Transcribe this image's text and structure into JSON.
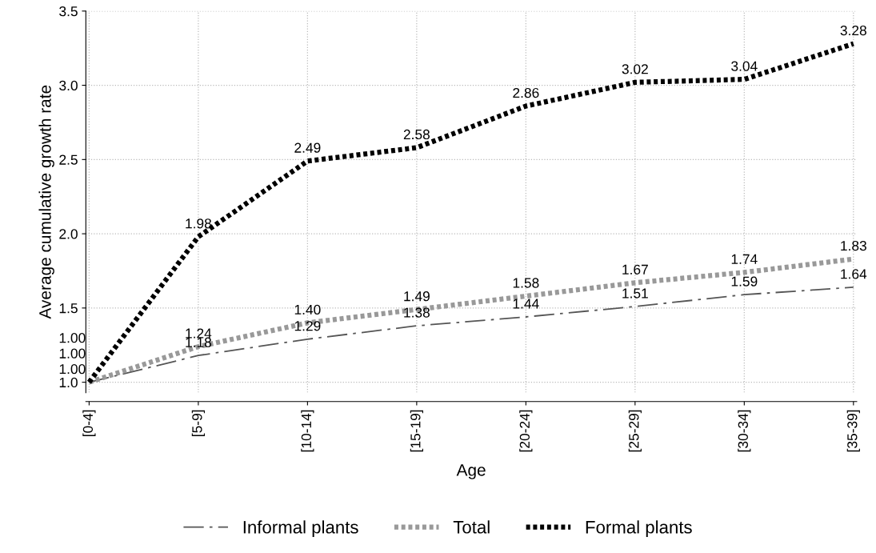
{
  "chart_data": {
    "type": "line",
    "xlabel": "Age",
    "ylabel": "Average cumulative growth rate",
    "categories": [
      "[0-4]",
      "[5-9]",
      "[10-14]",
      "[15-19]",
      "[20-24]",
      "[25-29]",
      "[30-34]",
      "[35-39]"
    ],
    "series": [
      {
        "name": "Informal plants",
        "color": "#555555",
        "line_style": "dashdot",
        "values": [
          1.0,
          1.18,
          1.29,
          1.38,
          1.44,
          1.51,
          1.59,
          1.64
        ],
        "value_labels": [
          "1.00",
          "1.18",
          "1.29",
          "1.38",
          "1.44",
          "1.51",
          "1.59",
          "1.64"
        ]
      },
      {
        "name": "Total",
        "color": "#999999",
        "line_style": "dotted",
        "values": [
          1.0,
          1.24,
          1.4,
          1.49,
          1.58,
          1.67,
          1.74,
          1.83
        ],
        "value_labels": [
          "1.00",
          "1.24",
          "1.40",
          "1.49",
          "1.58",
          "1.67",
          "1.74",
          "1.83"
        ]
      },
      {
        "name": "Formal plants",
        "color": "#000000",
        "line_style": "dotted",
        "values": [
          1.0,
          1.98,
          2.49,
          2.58,
          2.86,
          3.02,
          3.04,
          3.28
        ],
        "value_labels": [
          "1.00",
          "1.98",
          "2.49",
          "2.58",
          "2.86",
          "3.02",
          "3.04",
          "3.28"
        ]
      }
    ],
    "ylim": [
      0.93,
      3.5
    ],
    "yticks": [
      {
        "value": 1.0,
        "label": "1.0"
      },
      {
        "value": 1.5,
        "label": "1.5"
      },
      {
        "value": 2.0,
        "label": "2.0"
      },
      {
        "value": 2.5,
        "label": "2.5"
      },
      {
        "value": 3.0,
        "label": "3.0"
      },
      {
        "value": 3.5,
        "label": "3.5"
      }
    ],
    "grid": true,
    "legend": "bottom",
    "marker": "none"
  }
}
